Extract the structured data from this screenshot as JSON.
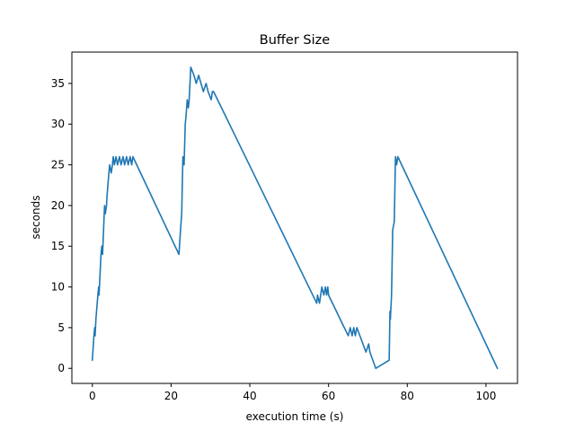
{
  "chart_data": {
    "type": "line",
    "title": "Buffer Size",
    "xlabel": "execution time (s)",
    "ylabel": "seconds",
    "xlim": [
      -5.2,
      108.0
    ],
    "ylim": [
      -1.85,
      38.85
    ],
    "xticks": [
      0,
      20,
      40,
      60,
      80,
      100
    ],
    "yticks": [
      0,
      5,
      10,
      15,
      20,
      25,
      30,
      35
    ],
    "grid": false,
    "line_color": "#1f77b4",
    "series": [
      {
        "x": [
          0.0,
          0.4,
          0.6,
          0.7,
          0.9,
          1.4,
          1.6,
          1.7,
          2.2,
          2.4,
          2.6,
          3.1,
          3.3,
          3.6,
          3.7,
          4.2,
          4.4,
          4.8,
          5.1,
          5.3,
          5.6,
          6.0,
          6.4,
          6.9,
          7.3,
          7.8,
          8.2,
          8.7,
          9.1,
          9.6,
          10.0,
          10.3,
          22.0,
          22.4,
          22.7,
          23.0,
          23.3,
          23.6,
          23.8,
          24.1,
          24.4,
          24.6,
          25.0,
          25.8,
          26.4,
          27.0,
          27.6,
          28.2,
          28.9,
          29.4,
          30.2,
          30.5,
          30.8,
          57.0,
          57.2,
          57.7,
          58.0,
          58.3,
          58.8,
          59.2,
          59.5,
          59.8,
          60.0,
          65.0,
          65.5,
          66.0,
          66.4,
          66.8,
          67.2,
          69.5,
          70.2,
          70.5,
          72.0,
          75.4,
          75.6,
          75.7,
          76.0,
          76.3,
          76.7,
          77.0,
          77.3,
          77.6,
          102.9
        ],
        "y": [
          1,
          4,
          5,
          4,
          6,
          9,
          10,
          9,
          14,
          15,
          14,
          20,
          19,
          20,
          21,
          24,
          25,
          24,
          25,
          26,
          25,
          26,
          25,
          26,
          25,
          26,
          25,
          26,
          25,
          26,
          25,
          26,
          14,
          17,
          19,
          26,
          25,
          30,
          31,
          33,
          32,
          33,
          37,
          36,
          35,
          36,
          35,
          34,
          35,
          34,
          33,
          34,
          34,
          8,
          9,
          8,
          9,
          10,
          9,
          10,
          9,
          10,
          9,
          4,
          5,
          4,
          5,
          4,
          5,
          2,
          3,
          2,
          0,
          1,
          7,
          6,
          9,
          17,
          18,
          26,
          25,
          26,
          0
        ]
      }
    ]
  }
}
